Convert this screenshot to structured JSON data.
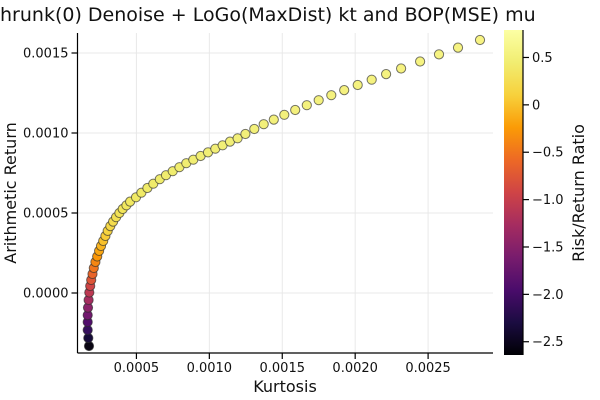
{
  "chart_data": {
    "type": "scatter",
    "title": "hrunk(0) Denoise + LoGo(MaxDist) kt and BOP(MSE) mu",
    "xlabel": "Kurtosis",
    "ylabel": "Arithmetic Return",
    "colorbar_label": "Risk/Return Ratio",
    "xlim": [
      9.6e-05,
      0.002945
    ],
    "ylim": [
      -0.000375,
      0.001625
    ],
    "clim": [
      -2.64,
      0.79
    ],
    "grid": true,
    "x_ticks": [
      0.0005,
      0.001,
      0.0015,
      0.002,
      0.0025
    ],
    "x_tick_labels": [
      "0.0005",
      "0.0010",
      "0.0015",
      "0.0020",
      "0.0025"
    ],
    "y_ticks": [
      0.0,
      0.0005,
      0.001,
      0.0015
    ],
    "y_tick_labels": [
      "0.0000",
      "0.0005",
      "0.0010",
      "0.0015"
    ],
    "colorbar_ticks": [
      0.5,
      0.0,
      -0.5,
      -1.0,
      -1.5,
      -2.0,
      -2.5
    ],
    "colorbar_tick_labels": [
      "0.5",
      "0",
      "−0.5",
      "−1.0",
      "−1.5",
      "−2.0",
      "−2.5"
    ],
    "colorbar_gradient": [
      "#fcffa4",
      "#f1ed71",
      "#f7d13c",
      "#fb9b06",
      "#ed6925",
      "#cf4446",
      "#a52c60",
      "#781c6d",
      "#4a0c6b",
      "#1b0c41",
      "#000004"
    ],
    "series_name": "efficient-frontier",
    "points": [
      {
        "k": 0.000175,
        "r": -0.000331,
        "ratio": -2.62,
        "color": "#0a0613"
      },
      {
        "k": 0.00017,
        "r": -0.000281,
        "ratio": -2.35,
        "color": "#160b39"
      },
      {
        "k": 0.000166,
        "r": -0.000231,
        "ratio": -2.1,
        "color": "#36105e"
      },
      {
        "k": 0.000166,
        "r": -0.000181,
        "ratio": -1.87,
        "color": "#520e6d"
      },
      {
        "k": 0.000166,
        "r": -0.000138,
        "ratio": -1.65,
        "color": "#72196e"
      },
      {
        "k": 0.000168,
        "r": -9.1e-05,
        "ratio": -1.45,
        "color": "#8b2369"
      },
      {
        "k": 0.000172,
        "r": -4.4e-05,
        "ratio": -1.26,
        "color": "#a62d5f"
      },
      {
        "k": 0.000177,
        "r": 3e-06,
        "ratio": -1.08,
        "color": "#bc3952"
      },
      {
        "k": 0.000183,
        "r": 4.4e-05,
        "ratio": -0.92,
        "color": "#cf4446"
      },
      {
        "k": 0.00019,
        "r": 8.1e-05,
        "ratio": -0.77,
        "color": "#dd5537"
      },
      {
        "k": 0.000199,
        "r": 0.000119,
        "ratio": -0.63,
        "color": "#e96429"
      },
      {
        "k": 0.000208,
        "r": 0.000156,
        "ratio": -0.5,
        "color": "#f0751e"
      },
      {
        "k": 0.000219,
        "r": 0.000194,
        "ratio": -0.38,
        "color": "#f58612"
      },
      {
        "k": 0.000231,
        "r": 0.000228,
        "ratio": -0.27,
        "color": "#fa9608"
      },
      {
        "k": 0.000244,
        "r": 0.000263,
        "ratio": -0.17,
        "color": "#faa611"
      },
      {
        "k": 0.000257,
        "r": 0.000294,
        "ratio": -0.08,
        "color": "#f9b41f"
      },
      {
        "k": 0.000272,
        "r": 0.000325,
        "ratio": 0.0,
        "color": "#f8c12c"
      },
      {
        "k": 0.000287,
        "r": 0.000356,
        "ratio": 0.07,
        "color": "#f7cc37"
      },
      {
        "k": 0.000303,
        "r": 0.000388,
        "ratio": 0.14,
        "color": "#f6d440"
      },
      {
        "k": 0.000321,
        "r": 0.000418,
        "ratio": 0.2,
        "color": "#f5d847"
      },
      {
        "k": 0.00034,
        "r": 0.000446,
        "ratio": 0.25,
        "color": "#f4dc4d"
      },
      {
        "k": 0.000361,
        "r": 0.000474,
        "ratio": 0.3,
        "color": "#f3e052"
      },
      {
        "k": 0.000383,
        "r": 0.0005,
        "ratio": 0.34,
        "color": "#f2e357"
      },
      {
        "k": 0.000406,
        "r": 0.000525,
        "ratio": 0.38,
        "color": "#f2e55a"
      },
      {
        "k": 0.000431,
        "r": 0.000548,
        "ratio": 0.41,
        "color": "#f1e75e"
      },
      {
        "k": 0.000457,
        "r": 0.000571,
        "ratio": 0.44,
        "color": "#f1e861"
      },
      {
        "k": 0.000497,
        "r": 0.000598,
        "ratio": 0.47,
        "color": "#f0e964"
      },
      {
        "k": 0.000534,
        "r": 0.000627,
        "ratio": 0.5,
        "color": "#f0ea66"
      },
      {
        "k": 0.000575,
        "r": 0.000656,
        "ratio": 0.52,
        "color": "#f0eb68"
      },
      {
        "k": 0.000616,
        "r": 0.000683,
        "ratio": 0.54,
        "color": "#f0eb6a"
      },
      {
        "k": 0.00066,
        "r": 0.000711,
        "ratio": 0.56,
        "color": "#f0ec6c"
      },
      {
        "k": 0.000703,
        "r": 0.000736,
        "ratio": 0.58,
        "color": "#f0ec6e"
      },
      {
        "k": 0.000749,
        "r": 0.000761,
        "ratio": 0.59,
        "color": "#f0ed6f"
      },
      {
        "k": 0.000795,
        "r": 0.000786,
        "ratio": 0.6,
        "color": "#f1ed70"
      },
      {
        "k": 0.000842,
        "r": 0.000811,
        "ratio": 0.61,
        "color": "#f1ed72"
      },
      {
        "k": 0.00089,
        "r": 0.000833,
        "ratio": 0.63,
        "color": "#f1ee73"
      },
      {
        "k": 0.00094,
        "r": 0.000856,
        "ratio": 0.64,
        "color": "#f1ee74"
      },
      {
        "k": 0.000991,
        "r": 0.000879,
        "ratio": 0.65,
        "color": "#f1ee75"
      },
      {
        "k": 0.001041,
        "r": 0.000902,
        "ratio": 0.66,
        "color": "#f2ee76"
      },
      {
        "k": 0.001091,
        "r": 0.000923,
        "ratio": 0.66,
        "color": "#f2ef77"
      },
      {
        "k": 0.001142,
        "r": 0.000946,
        "ratio": 0.67,
        "color": "#f2ef78"
      },
      {
        "k": 0.001194,
        "r": 0.000967,
        "ratio": 0.68,
        "color": "#f2ef79"
      },
      {
        "k": 0.001247,
        "r": 0.000994,
        "ratio": 0.68,
        "color": "#f2ef7a"
      },
      {
        "k": 0.001308,
        "r": 0.001025,
        "ratio": 0.69,
        "color": "#f3f07a"
      },
      {
        "k": 0.001373,
        "r": 0.001055,
        "ratio": 0.69,
        "color": "#f3f07b"
      },
      {
        "k": 0.001442,
        "r": 0.001084,
        "ratio": 0.7,
        "color": "#f3f07c"
      },
      {
        "k": 0.001514,
        "r": 0.001114,
        "ratio": 0.7,
        "color": "#f3f07c"
      },
      {
        "k": 0.001589,
        "r": 0.001144,
        "ratio": 0.71,
        "color": "#f4f07d"
      },
      {
        "k": 0.001668,
        "r": 0.001174,
        "ratio": 0.71,
        "color": "#f4f17d"
      },
      {
        "k": 0.00175,
        "r": 0.001205,
        "ratio": 0.72,
        "color": "#f4f17e"
      },
      {
        "k": 0.001836,
        "r": 0.001236,
        "ratio": 0.72,
        "color": "#f4f17e"
      },
      {
        "k": 0.001925,
        "r": 0.001268,
        "ratio": 0.73,
        "color": "#f5f17f"
      },
      {
        "k": 0.002017,
        "r": 0.0013,
        "ratio": 0.73,
        "color": "#f5f27f"
      },
      {
        "k": 0.002113,
        "r": 0.001333,
        "ratio": 0.74,
        "color": "#f5f280"
      },
      {
        "k": 0.002212,
        "r": 0.001368,
        "ratio": 0.74,
        "color": "#f5f280"
      },
      {
        "k": 0.002315,
        "r": 0.001403,
        "ratio": 0.75,
        "color": "#f6f281"
      },
      {
        "k": 0.002445,
        "r": 0.001447,
        "ratio": 0.75,
        "color": "#f6f381"
      },
      {
        "k": 0.002575,
        "r": 0.001491,
        "ratio": 0.76,
        "color": "#f6f382"
      },
      {
        "k": 0.002705,
        "r": 0.001534,
        "ratio": 0.76,
        "color": "#f6f382"
      },
      {
        "k": 0.002856,
        "r": 0.001581,
        "ratio": 0.77,
        "color": "#f7f383"
      }
    ]
  }
}
